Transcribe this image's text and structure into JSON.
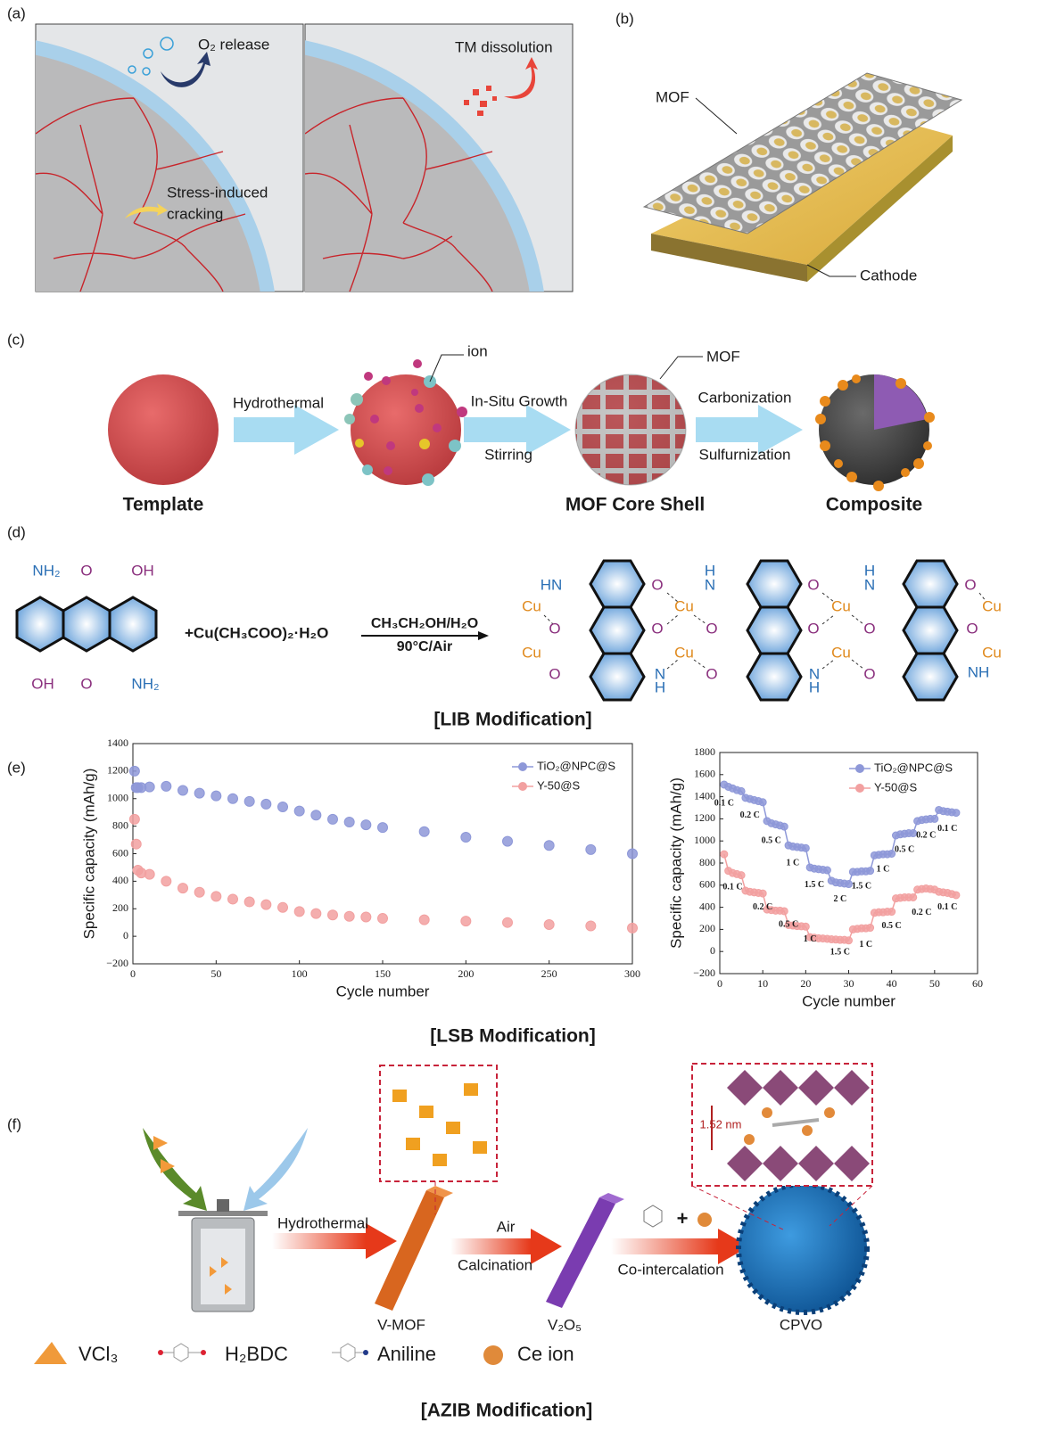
{
  "panel_labels": [
    "(a)",
    "(b)",
    "(c)",
    "(d)",
    "(e)",
    "(f)"
  ],
  "panel_a": {
    "o2": "O₂ release",
    "tm": "TM dissolution",
    "stress": [
      "Stress-induced",
      "cracking"
    ]
  },
  "panel_b": {
    "mof": "MOF",
    "cathode": "Cathode"
  },
  "panel_c": {
    "ion": "ion",
    "mof": "MOF",
    "arrows": [
      {
        "top": "Hydrothermal"
      },
      {
        "top": "In-Situ Growth",
        "bottom": "Stirring"
      },
      {
        "top": "Carbonization",
        "bottom": "Sulfurnization"
      }
    ],
    "stages": [
      "Template",
      "MOF Core Shell",
      "Composite"
    ]
  },
  "panel_d": {
    "title": "[LIB Modification]",
    "reagent": "+Cu(CH₃COO)₂·H₂O",
    "conditions": [
      "CH₃CH₂OH/H₂O",
      "90°C/Air"
    ],
    "monomer_labels": [
      "NH₂",
      "O",
      "OH",
      "OH",
      "O",
      "NH₂"
    ],
    "polymer_labels": [
      "HN",
      "Cu",
      "O",
      "Cu",
      "O",
      "O",
      "Cu",
      "O",
      "Cu",
      "N",
      "H",
      "H",
      "N",
      "O",
      "O",
      "O",
      "Cu",
      "O",
      "Cu",
      "N",
      "H",
      "H",
      "N",
      "O",
      "O",
      "O",
      "Cu",
      "O",
      "Cu",
      "NH"
    ]
  },
  "panel_e": {
    "title": "[LSB Modification]"
  },
  "panel_f": {
    "title": "[AZIB Modification]",
    "steps": [
      "Hydrothermal",
      "Air",
      "Calcination",
      "Co-intercalation"
    ],
    "products": [
      "V-MOF",
      "V₂O₅",
      "CPVO"
    ],
    "spacing": "1.52 nm",
    "legend": [
      "VCl₃",
      "H₂BDC",
      "Aniline",
      "Ce ion"
    ]
  },
  "chart_data": [
    {
      "type": "scatter",
      "x_label": "Cycle number",
      "y_label": "Specific capacity (mAh/g)",
      "xlim": [
        0,
        300
      ],
      "ylim": [
        -200,
        1400
      ],
      "xticks": [
        0,
        50,
        100,
        150,
        200,
        250,
        300
      ],
      "yticks": [
        {
          "value": -200,
          "label": "−200"
        },
        0,
        200,
        400,
        600,
        800,
        1000,
        1200,
        1400
      ],
      "legend": "upper right",
      "x": [
        1,
        2,
        3,
        5,
        10,
        20,
        30,
        40,
        50,
        60,
        70,
        80,
        90,
        100,
        110,
        120,
        130,
        140,
        150,
        175,
        200,
        225,
        250,
        275,
        300
      ],
      "series": [
        {
          "name": "TiO₂@NPC@S",
          "color": "#8e98d8",
          "values": [
            1200,
            1080,
            1080,
            1080,
            1085,
            1090,
            1060,
            1040,
            1020,
            1000,
            980,
            960,
            940,
            910,
            880,
            850,
            830,
            810,
            790,
            760,
            720,
            690,
            660,
            630,
            600
          ]
        },
        {
          "name": "Y-50@S",
          "color": "#f2a0a0",
          "values": [
            850,
            670,
            480,
            460,
            450,
            400,
            350,
            320,
            290,
            270,
            250,
            230,
            210,
            180,
            165,
            155,
            145,
            140,
            130,
            120,
            110,
            100,
            85,
            75,
            60
          ]
        }
      ]
    },
    {
      "type": "line",
      "x_label": "Cycle number",
      "y_label": "Specific capacity (mAh/g)",
      "xlim": [
        0,
        60
      ],
      "ylim": [
        -200,
        1800
      ],
      "xticks": [
        0,
        10,
        20,
        30,
        40,
        50,
        60
      ],
      "yticks": [
        {
          "value": -200,
          "label": "−200"
        },
        0,
        200,
        400,
        600,
        800,
        1000,
        1200,
        1400,
        1600,
        1800
      ],
      "legend": "upper right",
      "x": [
        1,
        2,
        3,
        4,
        5,
        6,
        7,
        8,
        9,
        10,
        11,
        12,
        13,
        14,
        15,
        16,
        17,
        18,
        19,
        20,
        21,
        22,
        23,
        24,
        25,
        26,
        27,
        28,
        29,
        30,
        31,
        32,
        33,
        34,
        35,
        36,
        37,
        38,
        39,
        40,
        41,
        42,
        43,
        44,
        45,
        46,
        47,
        48,
        49,
        50,
        51,
        52,
        53,
        54,
        55
      ],
      "series": [
        {
          "name": "TiO₂@NPC@S",
          "color": "#8e98d8",
          "values": [
            1510,
            1490,
            1475,
            1460,
            1450,
            1390,
            1380,
            1370,
            1360,
            1350,
            1180,
            1160,
            1150,
            1140,
            1130,
            960,
            950,
            945,
            940,
            935,
            760,
            750,
            745,
            740,
            735,
            640,
            625,
            620,
            615,
            610,
            720,
            720,
            725,
            725,
            730,
            870,
            875,
            880,
            880,
            885,
            1050,
            1060,
            1065,
            1070,
            1070,
            1180,
            1190,
            1195,
            1200,
            1200,
            1280,
            1270,
            1265,
            1260,
            1255
          ]
        },
        {
          "name": "Y-50@S",
          "color": "#f2a0a0",
          "values": [
            880,
            730,
            710,
            700,
            690,
            550,
            540,
            535,
            530,
            525,
            380,
            375,
            370,
            370,
            365,
            240,
            235,
            230,
            228,
            225,
            130,
            125,
            120,
            118,
            115,
            110,
            108,
            105,
            105,
            100,
            200,
            205,
            210,
            210,
            215,
            350,
            355,
            355,
            360,
            360,
            480,
            485,
            490,
            490,
            490,
            560,
            565,
            570,
            565,
            560,
            540,
            535,
            530,
            520,
            510
          ]
        }
      ],
      "annotations": [
        {
          "text": "0.1 C",
          "x": 1,
          "y": 1340
        },
        {
          "text": "0.2 C",
          "x": 7,
          "y": 1230
        },
        {
          "text": "0.5 C",
          "x": 12,
          "y": 1000
        },
        {
          "text": "1 C",
          "x": 17,
          "y": 800
        },
        {
          "text": "1.5 C",
          "x": 22,
          "y": 600
        },
        {
          "text": "2 C",
          "x": 28,
          "y": 470
        },
        {
          "text": "1.5 C",
          "x": 33,
          "y": 590
        },
        {
          "text": "1 C",
          "x": 38,
          "y": 740
        },
        {
          "text": "0.5 C",
          "x": 43,
          "y": 920
        },
        {
          "text": "0.2 C",
          "x": 48,
          "y": 1050
        },
        {
          "text": "0.1 C",
          "x": 53,
          "y": 1110
        },
        {
          "text": "0.1 C",
          "x": 3,
          "y": 580
        },
        {
          "text": "0.2 C",
          "x": 10,
          "y": 400
        },
        {
          "text": "0.5 C",
          "x": 16,
          "y": 240
        },
        {
          "text": "1 C",
          "x": 21,
          "y": 110
        },
        {
          "text": "1.5 C",
          "x": 28,
          "y": -10
        },
        {
          "text": "1 C",
          "x": 34,
          "y": 60
        },
        {
          "text": "0.5 C",
          "x": 40,
          "y": 230
        },
        {
          "text": "0.2 C",
          "x": 47,
          "y": 350
        },
        {
          "text": "0.1 C",
          "x": 53,
          "y": 400
        }
      ]
    }
  ]
}
